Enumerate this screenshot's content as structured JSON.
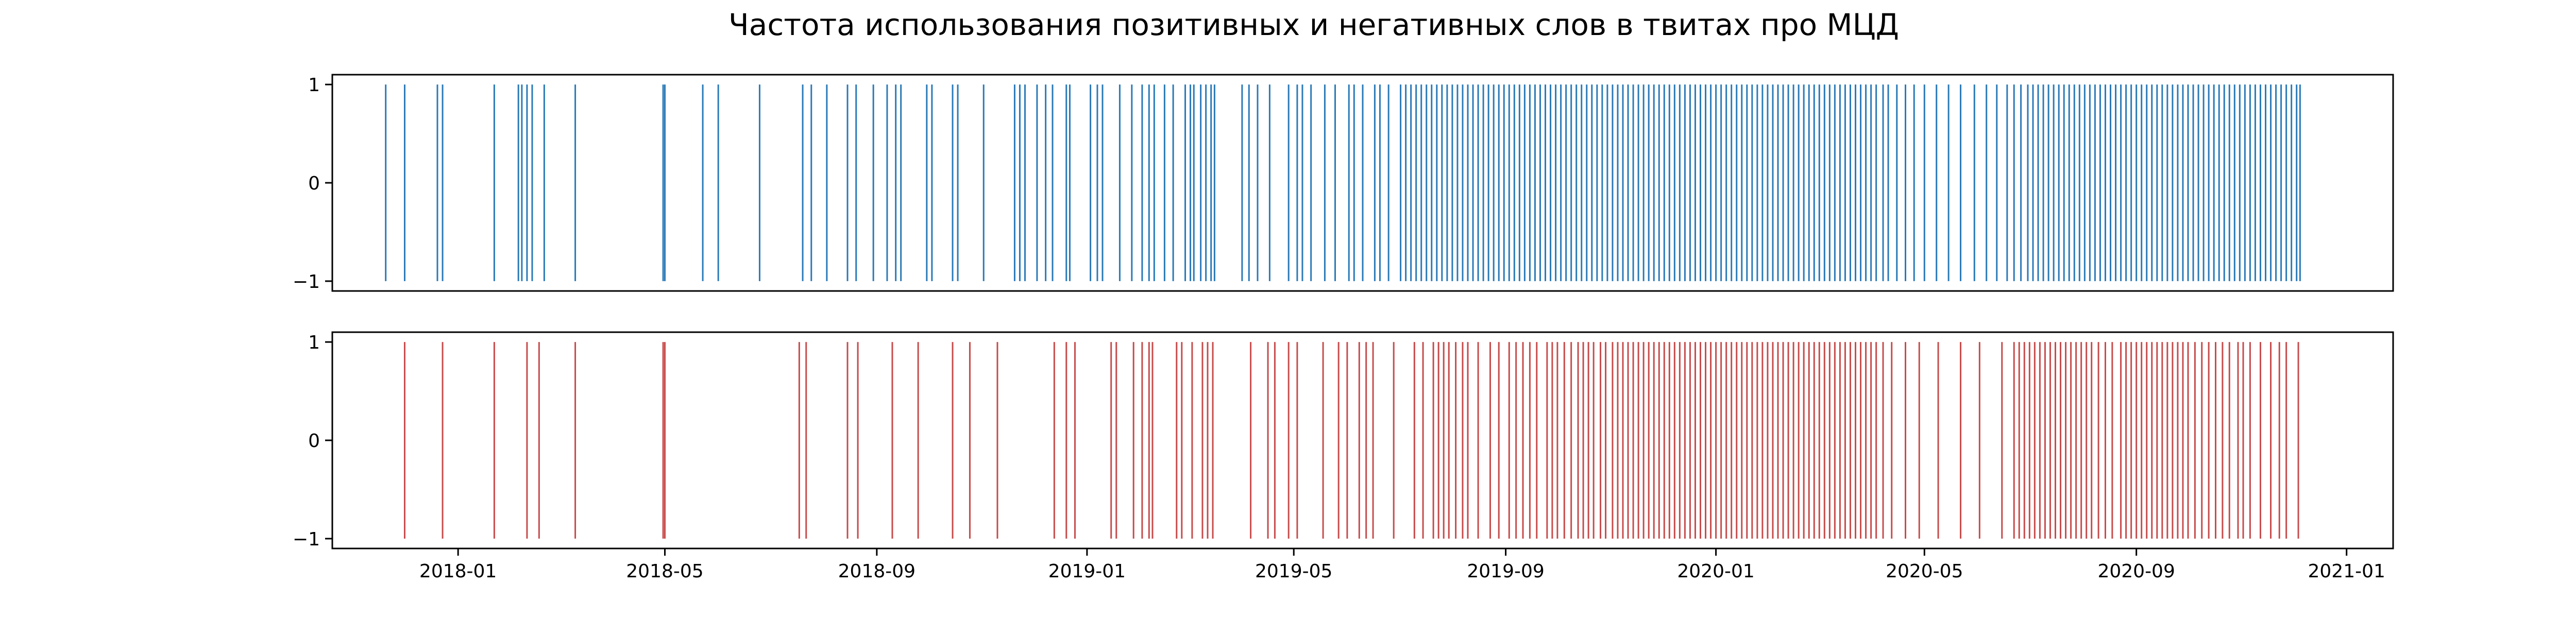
{
  "chart_data": {
    "type": "event-plot",
    "title": "Частота использования позитивных и негативных слов в твитах про МЦД",
    "x_axis": {
      "type": "date",
      "range": [
        "2017-10-20",
        "2021-01-28"
      ],
      "tick_labels": [
        "2018-01",
        "2018-05",
        "2018-09",
        "2019-01",
        "2019-05",
        "2019-09",
        "2020-01",
        "2020-05",
        "2020-09",
        "2021-01"
      ],
      "tick_dates": [
        "2018-01-01",
        "2018-05-01",
        "2018-09-01",
        "2019-01-01",
        "2019-05-01",
        "2019-09-01",
        "2020-01-01",
        "2020-05-01",
        "2020-09-01",
        "2021-01-01"
      ]
    },
    "y_axis": {
      "range": [
        -1.1,
        1.1
      ],
      "tick_labels": [
        "1",
        "0",
        "−1"
      ],
      "tick_values": [
        1,
        0,
        -1
      ]
    },
    "grid": false,
    "subplots": [
      {
        "color": "#2a7ab8",
        "event_extent": [
          -1,
          1
        ],
        "events": [
          "2017-11-20",
          "2017-12-01",
          "2017-12-20",
          "2017-12-23",
          "2018-01-22",
          "2018-02-05",
          "2018-02-07",
          "2018-02-10",
          "2018-02-13",
          "2018-02-20",
          "2018-03-10",
          "2018-04-30",
          "2018-05-01",
          "2018-05-23",
          "2018-06-01",
          "2018-06-25",
          "2018-07-20",
          "2018-07-25",
          "2018-08-03",
          "2018-08-15",
          "2018-08-20",
          "2018-08-30",
          "2018-09-07",
          "2018-09-12",
          "2018-09-15",
          "2018-09-30",
          "2018-10-03",
          "2018-10-15",
          "2018-10-18",
          "2018-11-02",
          "2018-11-20",
          "2018-11-23",
          "2018-11-26",
          "2018-12-03",
          "2018-12-08",
          "2018-12-12",
          "2018-12-20",
          "2018-12-22",
          "2019-01-03",
          "2019-01-07",
          "2019-01-10",
          "2019-01-20",
          "2019-01-27",
          "2019-02-02",
          "2019-02-06",
          "2019-02-09",
          "2019-02-15",
          "2019-02-20",
          "2019-02-27",
          "2019-03-02",
          "2019-03-04",
          "2019-03-08",
          "2019-03-11",
          "2019-03-14",
          "2019-03-16",
          "2019-04-01",
          "2019-04-05",
          "2019-04-10",
          "2019-04-17",
          "2019-04-28",
          "2019-05-03",
          "2019-05-06",
          "2019-05-11",
          "2019-05-19",
          "2019-05-25",
          "2019-06-02",
          "2019-06-05",
          "2019-06-10",
          "2019-06-17",
          "2019-06-20",
          "2019-06-25",
          "2019-07-02",
          "2019-07-05",
          "2019-07-08",
          "2019-07-11",
          "2019-07-14",
          "2019-07-17",
          "2019-07-20",
          "2019-07-23",
          "2019-07-26",
          "2019-07-29",
          "2019-08-01",
          "2019-08-04",
          "2019-08-07",
          "2019-08-10",
          "2019-08-13",
          "2019-08-16",
          "2019-08-19",
          "2019-08-22",
          "2019-08-25",
          "2019-08-28",
          "2019-08-31",
          "2019-09-03",
          "2019-09-06",
          "2019-09-09",
          "2019-09-12",
          "2019-09-15",
          "2019-09-18",
          "2019-09-21",
          "2019-09-24",
          "2019-09-27",
          "2019-09-30",
          "2019-10-03",
          "2019-10-06",
          "2019-10-09",
          "2019-10-12",
          "2019-10-15",
          "2019-10-18",
          "2019-10-21",
          "2019-10-24",
          "2019-10-27",
          "2019-10-30",
          "2019-11-02",
          "2019-11-05",
          "2019-11-08",
          "2019-11-11",
          "2019-11-14",
          "2019-11-17",
          "2019-11-20",
          "2019-11-23",
          "2019-11-26",
          "2019-11-29",
          "2019-12-02",
          "2019-12-05",
          "2019-12-08",
          "2019-12-11",
          "2019-12-14",
          "2019-12-17",
          "2019-12-20",
          "2019-12-23",
          "2019-12-26",
          "2019-12-29",
          "2020-01-01",
          "2020-01-04",
          "2020-01-07",
          "2020-01-10",
          "2020-01-13",
          "2020-01-16",
          "2020-01-19",
          "2020-01-22",
          "2020-01-25",
          "2020-01-28",
          "2020-01-31",
          "2020-02-03",
          "2020-02-06",
          "2020-02-09",
          "2020-02-12",
          "2020-02-15",
          "2020-02-18",
          "2020-02-21",
          "2020-02-24",
          "2020-02-27",
          "2020-03-01",
          "2020-03-04",
          "2020-03-07",
          "2020-03-10",
          "2020-03-13",
          "2020-03-16",
          "2020-03-19",
          "2020-03-22",
          "2020-03-25",
          "2020-03-28",
          "2020-03-31",
          "2020-04-03",
          "2020-04-07",
          "2020-04-10",
          "2020-04-15",
          "2020-04-20",
          "2020-04-25",
          "2020-05-01",
          "2020-05-08",
          "2020-05-15",
          "2020-05-22",
          "2020-05-30",
          "2020-06-06",
          "2020-06-12",
          "2020-06-18",
          "2020-06-22",
          "2020-06-26",
          "2020-06-30",
          "2020-07-03",
          "2020-07-06",
          "2020-07-09",
          "2020-07-12",
          "2020-07-15",
          "2020-07-18",
          "2020-07-21",
          "2020-07-24",
          "2020-07-27",
          "2020-07-30",
          "2020-08-02",
          "2020-08-05",
          "2020-08-08",
          "2020-08-11",
          "2020-08-14",
          "2020-08-17",
          "2020-08-20",
          "2020-08-23",
          "2020-08-26",
          "2020-08-29",
          "2020-09-01",
          "2020-09-04",
          "2020-09-07",
          "2020-09-10",
          "2020-09-13",
          "2020-09-16",
          "2020-09-19",
          "2020-09-22",
          "2020-09-25",
          "2020-09-28",
          "2020-10-01",
          "2020-10-04",
          "2020-10-07",
          "2020-10-10",
          "2020-10-13",
          "2020-10-16",
          "2020-10-19",
          "2020-10-22",
          "2020-10-25",
          "2020-10-28",
          "2020-10-31",
          "2020-11-03",
          "2020-11-06",
          "2020-11-09",
          "2020-11-12",
          "2020-11-15",
          "2020-11-18",
          "2020-11-21",
          "2020-11-24",
          "2020-11-27",
          "2020-11-30",
          "2020-12-03",
          "2020-12-05"
        ]
      },
      {
        "color": "#c84b4b",
        "event_extent": [
          -1,
          1
        ],
        "events": [
          "2017-12-01",
          "2017-12-23",
          "2018-01-22",
          "2018-02-10",
          "2018-02-17",
          "2018-03-10",
          "2018-04-30",
          "2018-05-01",
          "2018-07-18",
          "2018-07-22",
          "2018-08-15",
          "2018-08-21",
          "2018-09-10",
          "2018-09-25",
          "2018-10-15",
          "2018-10-25",
          "2018-11-10",
          "2018-12-13",
          "2018-12-20",
          "2018-12-25",
          "2019-01-15",
          "2019-01-18",
          "2019-01-28",
          "2019-02-02",
          "2019-02-06",
          "2019-02-08",
          "2019-02-22",
          "2019-02-25",
          "2019-03-03",
          "2019-03-09",
          "2019-03-12",
          "2019-03-15",
          "2019-04-06",
          "2019-04-16",
          "2019-04-20",
          "2019-04-28",
          "2019-05-03",
          "2019-05-18",
          "2019-05-27",
          "2019-06-01",
          "2019-06-08",
          "2019-06-12",
          "2019-06-16",
          "2019-06-28",
          "2019-07-10",
          "2019-07-15",
          "2019-07-21",
          "2019-07-24",
          "2019-07-27",
          "2019-07-30",
          "2019-08-03",
          "2019-08-07",
          "2019-08-10",
          "2019-08-16",
          "2019-08-23",
          "2019-08-28",
          "2019-09-03",
          "2019-09-07",
          "2019-09-11",
          "2019-09-15",
          "2019-09-19",
          "2019-09-25",
          "2019-09-28",
          "2019-10-01",
          "2019-10-05",
          "2019-10-09",
          "2019-10-13",
          "2019-10-16",
          "2019-10-19",
          "2019-10-22",
          "2019-10-26",
          "2019-10-29",
          "2019-11-02",
          "2019-11-05",
          "2019-11-08",
          "2019-11-11",
          "2019-11-14",
          "2019-11-17",
          "2019-11-20",
          "2019-11-23",
          "2019-11-26",
          "2019-11-29",
          "2019-12-02",
          "2019-12-05",
          "2019-12-08",
          "2019-12-11",
          "2019-12-14",
          "2019-12-17",
          "2019-12-20",
          "2019-12-23",
          "2019-12-26",
          "2019-12-29",
          "2020-01-01",
          "2020-01-04",
          "2020-01-07",
          "2020-01-10",
          "2020-01-13",
          "2020-01-16",
          "2020-01-19",
          "2020-01-22",
          "2020-01-25",
          "2020-01-28",
          "2020-01-31",
          "2020-02-03",
          "2020-02-06",
          "2020-02-09",
          "2020-02-12",
          "2020-02-15",
          "2020-02-18",
          "2020-02-21",
          "2020-02-24",
          "2020-02-27",
          "2020-03-01",
          "2020-03-04",
          "2020-03-07",
          "2020-03-10",
          "2020-03-13",
          "2020-03-16",
          "2020-03-19",
          "2020-03-22",
          "2020-03-25",
          "2020-03-28",
          "2020-03-31",
          "2020-04-03",
          "2020-04-07",
          "2020-04-12",
          "2020-04-20",
          "2020-04-28",
          "2020-05-09",
          "2020-05-22",
          "2020-06-02",
          "2020-06-15",
          "2020-06-22",
          "2020-06-25",
          "2020-06-28",
          "2020-07-01",
          "2020-07-04",
          "2020-07-07",
          "2020-07-10",
          "2020-07-13",
          "2020-07-16",
          "2020-07-19",
          "2020-07-22",
          "2020-07-25",
          "2020-07-28",
          "2020-07-31",
          "2020-08-03",
          "2020-08-06",
          "2020-08-10",
          "2020-08-14",
          "2020-08-18",
          "2020-08-23",
          "2020-08-26",
          "2020-08-29",
          "2020-09-01",
          "2020-09-04",
          "2020-09-07",
          "2020-09-10",
          "2020-09-13",
          "2020-09-16",
          "2020-09-19",
          "2020-09-22",
          "2020-09-25",
          "2020-09-28",
          "2020-10-01",
          "2020-10-05",
          "2020-10-09",
          "2020-10-13",
          "2020-10-17",
          "2020-10-21",
          "2020-10-25",
          "2020-10-30",
          "2020-11-02",
          "2020-11-06",
          "2020-11-12",
          "2020-11-18",
          "2020-11-23",
          "2020-11-27",
          "2020-12-04"
        ]
      }
    ]
  }
}
